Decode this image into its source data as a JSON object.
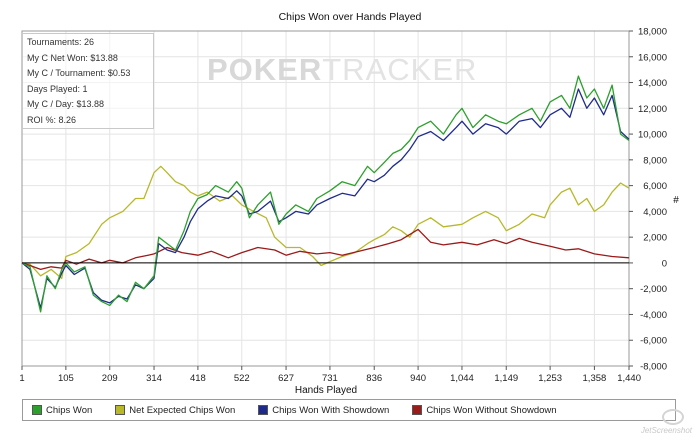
{
  "stats": {
    "lines": [
      "Tournaments: 26",
      "My C Net Won: $13.88",
      "My C / Tournament: $0.53",
      "Days Played: 1",
      "My C / Day: $13.88",
      "ROI %: 8.26"
    ]
  },
  "watermark": {
    "bold": "POKER",
    "light": "TRACKER"
  },
  "logo": {
    "text": "JetScreenshot"
  },
  "legend": {
    "items": [
      {
        "label": "Chips Won",
        "color": "#2ca02c"
      },
      {
        "label": "Net Expected Chips Won",
        "color": "#b8b82a"
      },
      {
        "label": "Chips Won With Showdown",
        "color": "#1f2b8c"
      },
      {
        "label": "Chips Won Without Showdown",
        "color": "#9b1a1a"
      }
    ]
  },
  "chart_data": {
    "type": "line",
    "title": "Chips Won over Hands Played",
    "xlabel": "Hands Played",
    "ylabel": "#",
    "xlim": [
      1,
      1440
    ],
    "ylim": [
      -8000,
      18000
    ],
    "xticks": [
      1,
      105,
      209,
      314,
      418,
      522,
      627,
      731,
      836,
      940,
      1044,
      1149,
      1253,
      1358,
      1440
    ],
    "xtick_labels": [
      "1",
      "105",
      "209",
      "314",
      "418",
      "522",
      "627",
      "731",
      "836",
      "940",
      "1,044",
      "1,149",
      "1,253",
      "1,358",
      "1,440"
    ],
    "yticks": [
      -8000,
      -6000,
      -4000,
      -2000,
      0,
      2000,
      4000,
      6000,
      8000,
      10000,
      12000,
      14000,
      16000,
      18000
    ],
    "ytick_labels": [
      "-8,000",
      "-6,000",
      "-4,000",
      "-2,000",
      "0",
      "2,000",
      "4,000",
      "6,000",
      "8,000",
      "10,000",
      "12,000",
      "14,000",
      "16,000",
      "18,000"
    ],
    "grid": true,
    "series": [
      {
        "name": "Chips Won",
        "color": "#2ca02c",
        "x": [
          1,
          20,
          45,
          60,
          80,
          95,
          105,
          125,
          150,
          170,
          190,
          209,
          230,
          250,
          270,
          290,
          314,
          325,
          345,
          365,
          385,
          400,
          418,
          440,
          460,
          490,
          510,
          522,
          540,
          560,
          590,
          610,
          627,
          650,
          680,
          700,
          731,
          760,
          790,
          820,
          836,
          860,
          880,
          900,
          920,
          940,
          970,
          1000,
          1030,
          1044,
          1070,
          1100,
          1130,
          1149,
          1180,
          1210,
          1230,
          1253,
          1280,
          1300,
          1320,
          1340,
          1358,
          1380,
          1400,
          1420,
          1440
        ],
        "y": [
          0,
          -300,
          -3800,
          -1000,
          -2000,
          -500,
          0,
          -700,
          -300,
          -2500,
          -3000,
          -3300,
          -2500,
          -3000,
          -1500,
          -2000,
          -1000,
          2000,
          1500,
          1000,
          2500,
          4000,
          5000,
          5300,
          6000,
          5500,
          6300,
          5800,
          3500,
          4500,
          5500,
          3000,
          3800,
          4500,
          4000,
          5000,
          5600,
          6300,
          6000,
          7500,
          7000,
          7800,
          8500,
          8800,
          9500,
          10500,
          11000,
          10000,
          11500,
          12000,
          10500,
          11500,
          11000,
          10800,
          11500,
          12000,
          11000,
          12500,
          13000,
          12000,
          14500,
          12800,
          13500,
          12000,
          13800,
          10000,
          9500
        ]
      },
      {
        "name": "Net Expected Chips Won",
        "color": "#b8b82a",
        "x": [
          1,
          20,
          45,
          70,
          95,
          105,
          130,
          160,
          190,
          209,
          240,
          270,
          290,
          314,
          330,
          345,
          365,
          385,
          400,
          418,
          440,
          470,
          500,
          522,
          550,
          580,
          600,
          627,
          660,
          690,
          710,
          731,
          760,
          790,
          820,
          836,
          860,
          880,
          900,
          920,
          940,
          970,
          1000,
          1044,
          1070,
          1100,
          1130,
          1149,
          1180,
          1210,
          1240,
          1253,
          1280,
          1300,
          1320,
          1340,
          1358,
          1380,
          1400,
          1420,
          1440
        ],
        "y": [
          0,
          -100,
          -1000,
          -500,
          -1200,
          500,
          800,
          1500,
          3000,
          3500,
          4000,
          5000,
          5000,
          7000,
          7500,
          7000,
          6300,
          6000,
          5500,
          5200,
          5500,
          4800,
          5200,
          4500,
          4000,
          3500,
          2000,
          1200,
          1200,
          500,
          -200,
          100,
          500,
          800,
          1500,
          1800,
          2200,
          2800,
          2500,
          2000,
          3000,
          3500,
          2800,
          3000,
          3500,
          4000,
          3500,
          2500,
          3000,
          3800,
          3500,
          4500,
          5500,
          5800,
          4500,
          5000,
          4000,
          4500,
          5500,
          6200,
          5800
        ]
      },
      {
        "name": "Chips Won With Showdown",
        "color": "#1f2b8c",
        "x": [
          1,
          20,
          45,
          60,
          80,
          95,
          105,
          125,
          150,
          170,
          190,
          209,
          230,
          250,
          270,
          290,
          314,
          325,
          345,
          365,
          385,
          400,
          418,
          440,
          460,
          490,
          510,
          522,
          540,
          560,
          590,
          610,
          627,
          650,
          680,
          700,
          731,
          760,
          790,
          820,
          836,
          860,
          880,
          900,
          920,
          940,
          970,
          1000,
          1030,
          1044,
          1070,
          1100,
          1130,
          1149,
          1180,
          1210,
          1230,
          1253,
          1280,
          1300,
          1320,
          1340,
          1358,
          1380,
          1400,
          1420,
          1440
        ],
        "y": [
          0,
          -500,
          -3500,
          -1200,
          -1900,
          -800,
          -200,
          -900,
          -400,
          -2300,
          -2900,
          -3100,
          -2600,
          -2800,
          -1700,
          -2000,
          -1200,
          1500,
          1000,
          800,
          2000,
          3200,
          4200,
          4800,
          5200,
          5000,
          5600,
          5200,
          3800,
          4000,
          4800,
          3200,
          3500,
          4000,
          3800,
          4500,
          5000,
          5400,
          5200,
          6500,
          6300,
          6800,
          7500,
          8000,
          8800,
          9800,
          10200,
          9500,
          10500,
          11000,
          10000,
          10800,
          10500,
          10000,
          11000,
          11200,
          10500,
          11500,
          12000,
          11300,
          13500,
          12000,
          12800,
          11500,
          13000,
          10200,
          9600
        ]
      },
      {
        "name": "Chips Won Without Showdown",
        "color": "#9b1a1a",
        "x": [
          1,
          20,
          45,
          70,
          95,
          105,
          130,
          160,
          190,
          209,
          240,
          270,
          300,
          314,
          345,
          380,
          418,
          450,
          490,
          522,
          560,
          600,
          627,
          660,
          700,
          731,
          760,
          800,
          836,
          870,
          900,
          940,
          970,
          1000,
          1044,
          1080,
          1120,
          1149,
          1180,
          1210,
          1253,
          1290,
          1320,
          1358,
          1400,
          1440
        ],
        "y": [
          0,
          -200,
          -500,
          -300,
          -400,
          200,
          -100,
          300,
          0,
          200,
          0,
          400,
          600,
          700,
          1200,
          800,
          600,
          900,
          400,
          800,
          1200,
          1000,
          600,
          900,
          700,
          800,
          600,
          900,
          1200,
          1500,
          1800,
          2600,
          1600,
          1400,
          1600,
          1400,
          1800,
          1500,
          1900,
          1600,
          1300,
          1000,
          1100,
          700,
          500,
          400
        ]
      }
    ]
  }
}
